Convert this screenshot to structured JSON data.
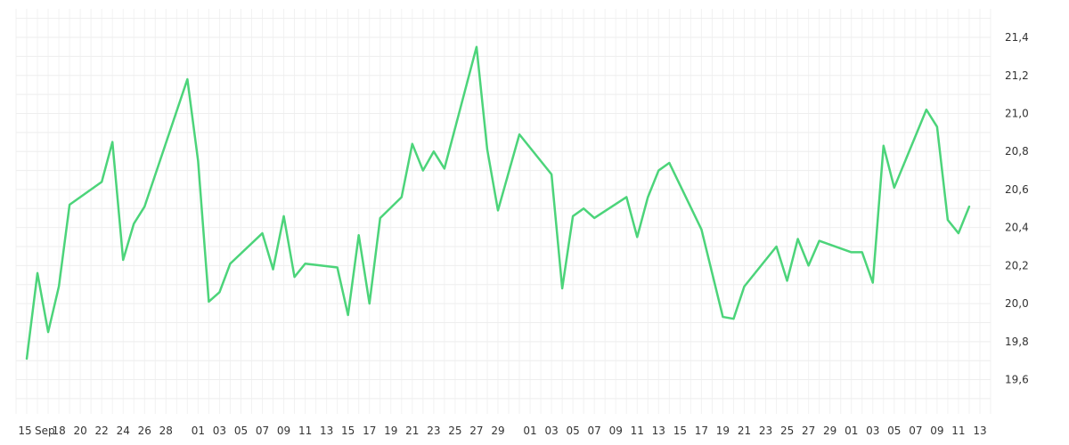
{
  "chart_data": {
    "type": "line",
    "title": "",
    "xlabel": "",
    "ylabel": "",
    "x_tick_labels": [
      "15",
      "Sep",
      "18",
      "20",
      "22",
      "24",
      "26",
      "28",
      "01",
      "03",
      "05",
      "07",
      "09",
      "11",
      "13",
      "15",
      "17",
      "19",
      "21",
      "23",
      "25",
      "27",
      "29",
      "01",
      "03",
      "05",
      "07",
      "09",
      "11",
      "13",
      "15",
      "17",
      "19",
      "21",
      "23",
      "25",
      "27",
      "29",
      "01",
      "03",
      "05",
      "07",
      "09",
      "11",
      "13"
    ],
    "y_tick_labels": [
      "19,6",
      "19,8",
      "20,0",
      "20,2",
      "20,4",
      "20,6",
      "20,8",
      "21,0",
      "21,2",
      "21,4"
    ],
    "y_ticks": [
      19.6,
      19.8,
      20.0,
      20.2,
      20.4,
      20.6,
      20.8,
      21.0,
      21.2,
      21.4
    ],
    "ylim": [
      19.42,
      21.55
    ],
    "xlim": [
      "2023-09-14",
      "2023-12-14"
    ],
    "x_tick_dates": [
      "2023-09-15",
      "2023-09-16",
      "2023-09-18",
      "2023-09-20",
      "2023-09-22",
      "2023-09-24",
      "2023-09-26",
      "2023-09-28",
      "2023-10-01",
      "2023-10-03",
      "2023-10-05",
      "2023-10-07",
      "2023-10-09",
      "2023-10-11",
      "2023-10-13",
      "2023-10-15",
      "2023-10-17",
      "2023-10-19",
      "2023-10-21",
      "2023-10-23",
      "2023-10-25",
      "2023-10-27",
      "2023-10-29",
      "2023-11-01",
      "2023-11-03",
      "2023-11-05",
      "2023-11-07",
      "2023-11-09",
      "2023-11-11",
      "2023-11-13",
      "2023-11-15",
      "2023-11-17",
      "2023-11-19",
      "2023-11-21",
      "2023-11-23",
      "2023-11-25",
      "2023-11-27",
      "2023-11-29",
      "2023-12-01",
      "2023-12-03",
      "2023-12-05",
      "2023-12-07",
      "2023-12-09",
      "2023-12-11",
      "2023-12-13"
    ],
    "grid": true,
    "line_color": "#4cd47a",
    "series": [
      {
        "x": [
          "2023-09-15",
          "2023-09-16",
          "2023-09-17",
          "2023-09-18",
          "2023-09-19",
          "2023-09-22",
          "2023-09-23",
          "2023-09-24",
          "2023-09-25",
          "2023-09-26",
          "2023-09-30",
          "2023-10-01",
          "2023-10-02",
          "2023-10-03",
          "2023-10-04",
          "2023-10-07",
          "2023-10-08",
          "2023-10-09",
          "2023-10-10",
          "2023-10-11",
          "2023-10-14",
          "2023-10-15",
          "2023-10-16",
          "2023-10-17",
          "2023-10-18",
          "2023-10-20",
          "2023-10-21",
          "2023-10-22",
          "2023-10-23",
          "2023-10-24",
          "2023-10-27",
          "2023-10-28",
          "2023-10-29",
          "2023-10-31",
          "2023-11-03",
          "2023-11-04",
          "2023-11-05",
          "2023-11-06",
          "2023-11-07",
          "2023-11-10",
          "2023-11-11",
          "2023-11-12",
          "2023-11-13",
          "2023-11-14",
          "2023-11-17",
          "2023-11-19",
          "2023-11-20",
          "2023-11-21",
          "2023-11-24",
          "2023-11-25",
          "2023-11-26",
          "2023-11-27",
          "2023-11-28",
          "2023-12-01",
          "2023-12-02",
          "2023-12-03",
          "2023-12-04",
          "2023-12-05",
          "2023-12-08",
          "2023-12-09",
          "2023-12-10",
          "2023-12-11",
          "2023-12-12"
        ],
        "values": [
          19.71,
          20.16,
          19.85,
          20.09,
          20.52,
          20.64,
          20.85,
          20.23,
          20.42,
          20.51,
          21.18,
          20.75,
          20.01,
          20.06,
          20.21,
          20.37,
          20.18,
          20.46,
          20.14,
          20.21,
          20.19,
          19.94,
          20.36,
          20.0,
          20.45,
          20.56,
          20.84,
          20.7,
          20.8,
          20.71,
          21.35,
          20.81,
          20.49,
          20.89,
          20.68,
          20.08,
          20.46,
          20.5,
          20.45,
          20.56,
          20.35,
          20.56,
          20.7,
          20.74,
          20.39,
          19.93,
          19.92,
          20.09,
          20.3,
          20.12,
          20.34,
          20.2,
          20.33,
          20.27,
          20.27,
          20.11,
          20.83,
          20.61,
          21.02,
          20.93,
          20.44,
          20.37,
          20.51
        ]
      }
    ]
  }
}
